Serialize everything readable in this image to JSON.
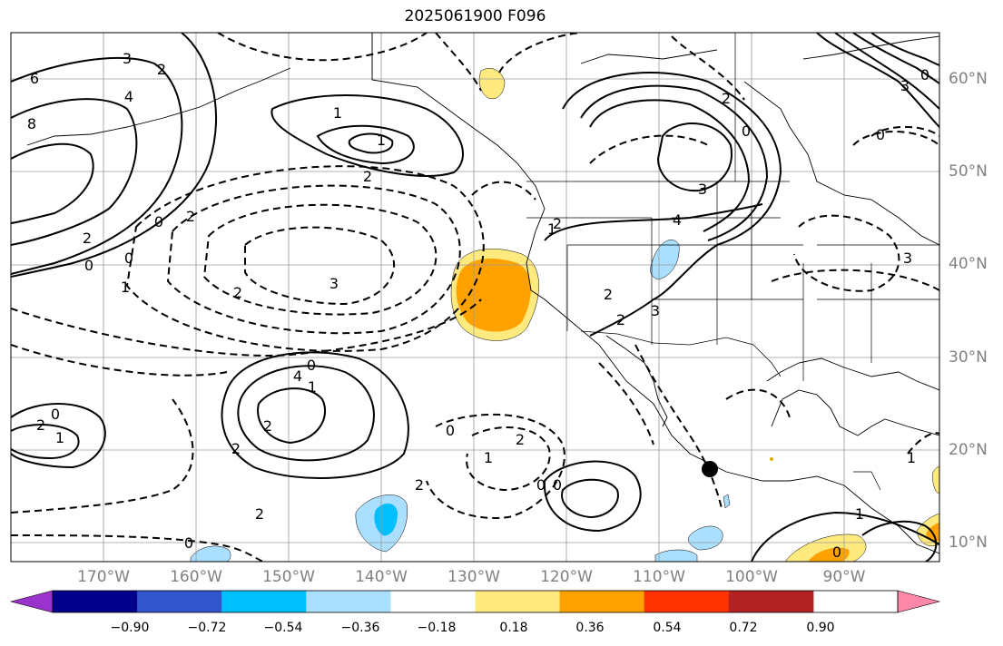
{
  "title": "2025061900 F096",
  "map": {
    "lat_labels": [
      "60°N",
      "50°N",
      "40°N",
      "30°N",
      "20°N",
      "10°N"
    ],
    "lon_labels": [
      "170°W",
      "160°W",
      "150°W",
      "140°W",
      "130°W",
      "120°W",
      "110°W",
      "100°W",
      "90°W"
    ],
    "contour_labels": [
      "6",
      "8",
      "4",
      "3",
      "2",
      "1",
      "1",
      "2",
      "0",
      "0",
      "2",
      "0",
      "2",
      "1",
      "2",
      "3",
      "4",
      "0",
      "1",
      "2",
      "0",
      "1",
      "2",
      "2",
      "0",
      "1",
      "2",
      "0",
      "0",
      "1",
      "2",
      "2",
      "2",
      "3",
      "4",
      "3",
      "2",
      "0",
      "0",
      "3",
      "0",
      "1",
      "0",
      "1",
      "2",
      "0",
      "2",
      "3"
    ]
  },
  "colorbar": {
    "ticks": [
      "−0.90",
      "−0.72",
      "−0.54",
      "−0.36",
      "−0.18",
      "0.18",
      "0.36",
      "0.54",
      "0.72",
      "0.90"
    ],
    "colors": [
      "#9933cc",
      "#00008b",
      "#3355cc",
      "#00bfff",
      "#aadfff",
      "#ffffff",
      "#ffea80",
      "#ffa200",
      "#ff3300",
      "#b22222",
      "#ff88aa"
    ]
  }
}
